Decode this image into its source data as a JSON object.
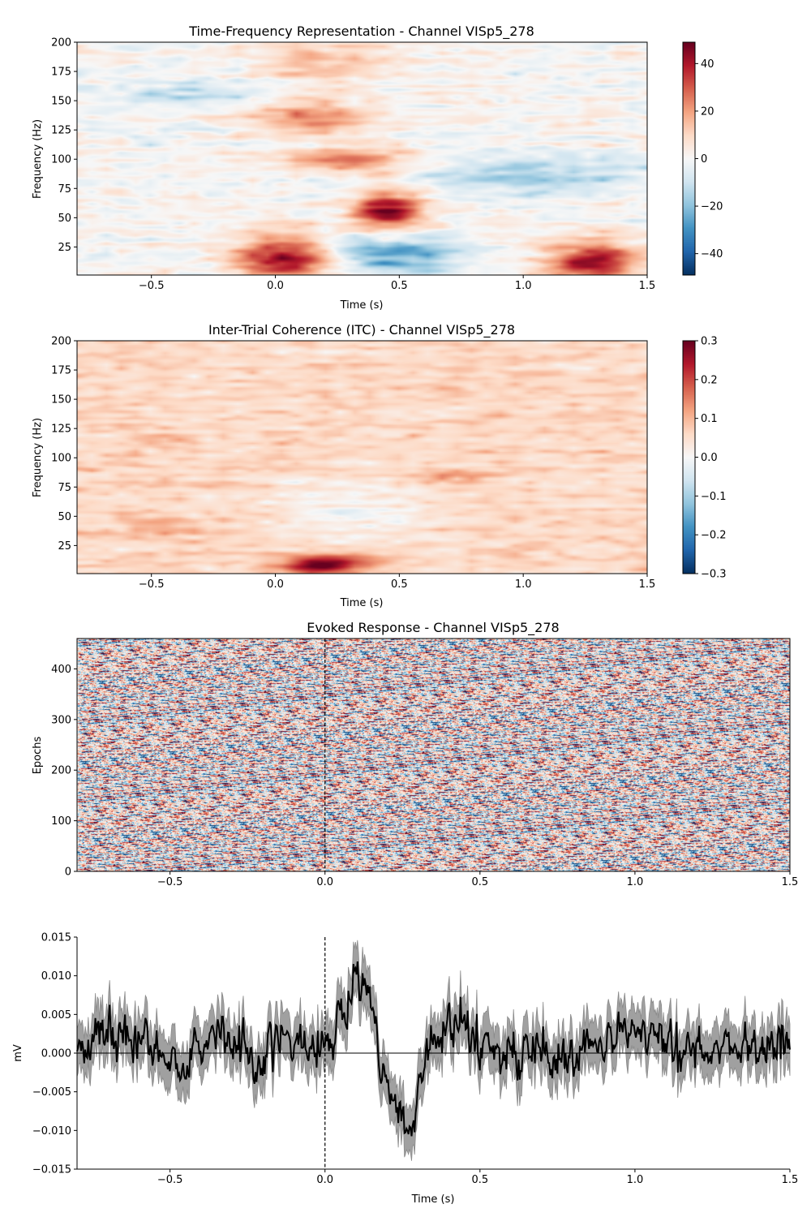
{
  "chart_data": [
    {
      "type": "heatmap",
      "title": "Time-Frequency Representation - Channel VISp5_278",
      "xlabel": "Time (s)",
      "ylabel": "Frequency (Hz)",
      "xlim": [
        -0.8,
        1.5
      ],
      "ylim": [
        1,
        200
      ],
      "xticks": [
        -0.5,
        0.0,
        0.5,
        1.0,
        1.5
      ],
      "xtick_labels": [
        "−0.5",
        "0.0",
        "0.5",
        "1.0",
        "1.5"
      ],
      "yticks": [
        25,
        50,
        75,
        100,
        125,
        150,
        175,
        200
      ],
      "ytick_labels": [
        "25",
        "50",
        "75",
        "100",
        "125",
        "150",
        "175",
        "200"
      ],
      "colormap": "RdBu_r",
      "colorbar": {
        "vmin": -49,
        "vmax": 49,
        "ticks": [
          -40,
          -20,
          0,
          20,
          40
        ],
        "tick_labels": [
          "−40",
          "−20",
          "0",
          "20",
          "40"
        ]
      },
      "features": [
        {
          "t": 0.05,
          "f": 15,
          "sigma_t": 0.15,
          "sigma_f": 14,
          "value": 45
        },
        {
          "t": 1.28,
          "f": 12,
          "sigma_t": 0.13,
          "sigma_f": 13,
          "value": 42
        },
        {
          "t": 0.45,
          "f": 55,
          "sigma_t": 0.1,
          "sigma_f": 14,
          "value": 44
        },
        {
          "t": 0.45,
          "f": 20,
          "sigma_t": 0.2,
          "sigma_f": 12,
          "value": -30
        },
        {
          "t": 0.3,
          "f": 98,
          "sigma_t": 0.18,
          "sigma_f": 7,
          "value": 30
        },
        {
          "t": 0.15,
          "f": 135,
          "sigma_t": 0.18,
          "sigma_f": 12,
          "value": 22
        },
        {
          "t": 0.2,
          "f": 185,
          "sigma_t": 0.2,
          "sigma_f": 15,
          "value": 15
        },
        {
          "t": 1.0,
          "f": 85,
          "sigma_t": 0.35,
          "sigma_f": 12,
          "value": -15
        },
        {
          "t": -0.35,
          "f": 155,
          "sigma_t": 0.3,
          "sigma_f": 8,
          "value": -10
        }
      ]
    },
    {
      "type": "heatmap",
      "title": "Inter-Trial Coherence (ITC) - Channel VISp5_278",
      "xlabel": "Time (s)",
      "ylabel": "Frequency (Hz)",
      "xlim": [
        -0.8,
        1.5
      ],
      "ylim": [
        1,
        200
      ],
      "xticks": [
        -0.5,
        0.0,
        0.5,
        1.0,
        1.5
      ],
      "xtick_labels": [
        "−0.5",
        "0.0",
        "0.5",
        "1.0",
        "1.5"
      ],
      "yticks": [
        25,
        50,
        75,
        100,
        125,
        150,
        175,
        200
      ],
      "ytick_labels": [
        "25",
        "50",
        "75",
        "100",
        "125",
        "150",
        "175",
        "200"
      ],
      "colormap": "RdBu_r",
      "colorbar": {
        "vmin": -0.3,
        "vmax": 0.3,
        "ticks": [
          -0.3,
          -0.2,
          -0.1,
          0.0,
          0.1,
          0.2,
          0.3
        ],
        "tick_labels": [
          "−0.3",
          "−0.2",
          "−0.1",
          "0.0",
          "0.1",
          "0.2",
          "0.3"
        ]
      },
      "baseline": 0.06,
      "features": [
        {
          "t": 0.2,
          "f": 8,
          "sigma_t": 0.13,
          "sigma_f": 6,
          "value": 0.25
        },
        {
          "t": -0.5,
          "f": 38,
          "sigma_t": 0.1,
          "sigma_f": 8,
          "value": 0.05
        },
        {
          "t": -0.45,
          "f": 115,
          "sigma_t": 0.08,
          "sigma_f": 5,
          "value": 0.05
        },
        {
          "t": 0.75,
          "f": 83,
          "sigma_t": 0.1,
          "sigma_f": 5,
          "value": 0.05
        },
        {
          "t": 0.35,
          "f": 55,
          "sigma_t": 0.25,
          "sigma_f": 25,
          "value": -0.05
        }
      ]
    },
    {
      "type": "heatmap",
      "title": "Evoked Response - Channel VISp5_278",
      "xlabel": "",
      "ylabel": "Epochs",
      "xlim": [
        -0.8,
        1.5
      ],
      "ylim": [
        0,
        460
      ],
      "xticks": [
        -0.5,
        0.0,
        0.5,
        1.0,
        1.5
      ],
      "xtick_labels": [
        "−0.5",
        "0.0",
        "0.5",
        "1.0",
        "1.5"
      ],
      "yticks": [
        0,
        100,
        200,
        300,
        400
      ],
      "ytick_labels": [
        "0",
        "100",
        "200",
        "300",
        "400"
      ],
      "colormap": "RdBu_r",
      "event_line": {
        "x": 0.0,
        "style": "dashed",
        "color": "#000000"
      }
    },
    {
      "type": "line",
      "xlabel": "Time (s)",
      "ylabel": "mV",
      "xlim": [
        -0.8,
        1.5
      ],
      "ylim": [
        -0.015,
        0.015
      ],
      "xticks": [
        -0.5,
        0.0,
        0.5,
        1.0,
        1.5
      ],
      "xtick_labels": [
        "−0.5",
        "0.0",
        "0.5",
        "1.0",
        "1.5"
      ],
      "yticks": [
        -0.015,
        -0.01,
        -0.005,
        0.0,
        0.005,
        0.01,
        0.015
      ],
      "ytick_labels": [
        "−0.015",
        "−0.010",
        "−0.005",
        "0.000",
        "0.005",
        "0.010",
        "0.015"
      ],
      "event_line": {
        "x": 0.0,
        "style": "dashed",
        "color": "#000000"
      },
      "zero_line": true,
      "band_halfwidth": 0.003,
      "series": [
        {
          "x": [
            -0.8,
            -0.75,
            -0.7,
            -0.65,
            -0.6,
            -0.55,
            -0.5,
            -0.45,
            -0.4,
            -0.35,
            -0.3,
            -0.25,
            -0.2,
            -0.15,
            -0.1,
            -0.05,
            0.0,
            0.05,
            0.08,
            0.1,
            0.13,
            0.15,
            0.18,
            0.2,
            0.23,
            0.25,
            0.28,
            0.3,
            0.35,
            0.4,
            0.45,
            0.5,
            0.55,
            0.6,
            0.65,
            0.7,
            0.75,
            0.8,
            0.85,
            0.9,
            0.95,
            1.0,
            1.05,
            1.1,
            1.15,
            1.2,
            1.25,
            1.3,
            1.35,
            1.4,
            1.45,
            1.5
          ],
          "y": [
            0.0005,
            0.002,
            0.0025,
            0.001,
            0.0025,
            0.001,
            -0.002,
            -0.001,
            0.0015,
            0.002,
            0.001,
            -0.0015,
            -0.001,
            0.002,
            -0.0005,
            0.001,
            0.0005,
            0.006,
            0.0095,
            0.011,
            0.009,
            0.006,
            0.0,
            -0.004,
            -0.007,
            -0.0085,
            -0.01,
            -0.006,
            0.003,
            0.004,
            0.004,
            0.002,
            0.001,
            0.0,
            -0.001,
            0.0005,
            -0.002,
            -0.001,
            0.0,
            0.001,
            0.0015,
            0.003,
            0.0025,
            0.001,
            0.0,
            0.001,
            -0.001,
            0.001,
            0.0015,
            0.001,
            0.0015,
            0.002
          ]
        }
      ]
    }
  ]
}
